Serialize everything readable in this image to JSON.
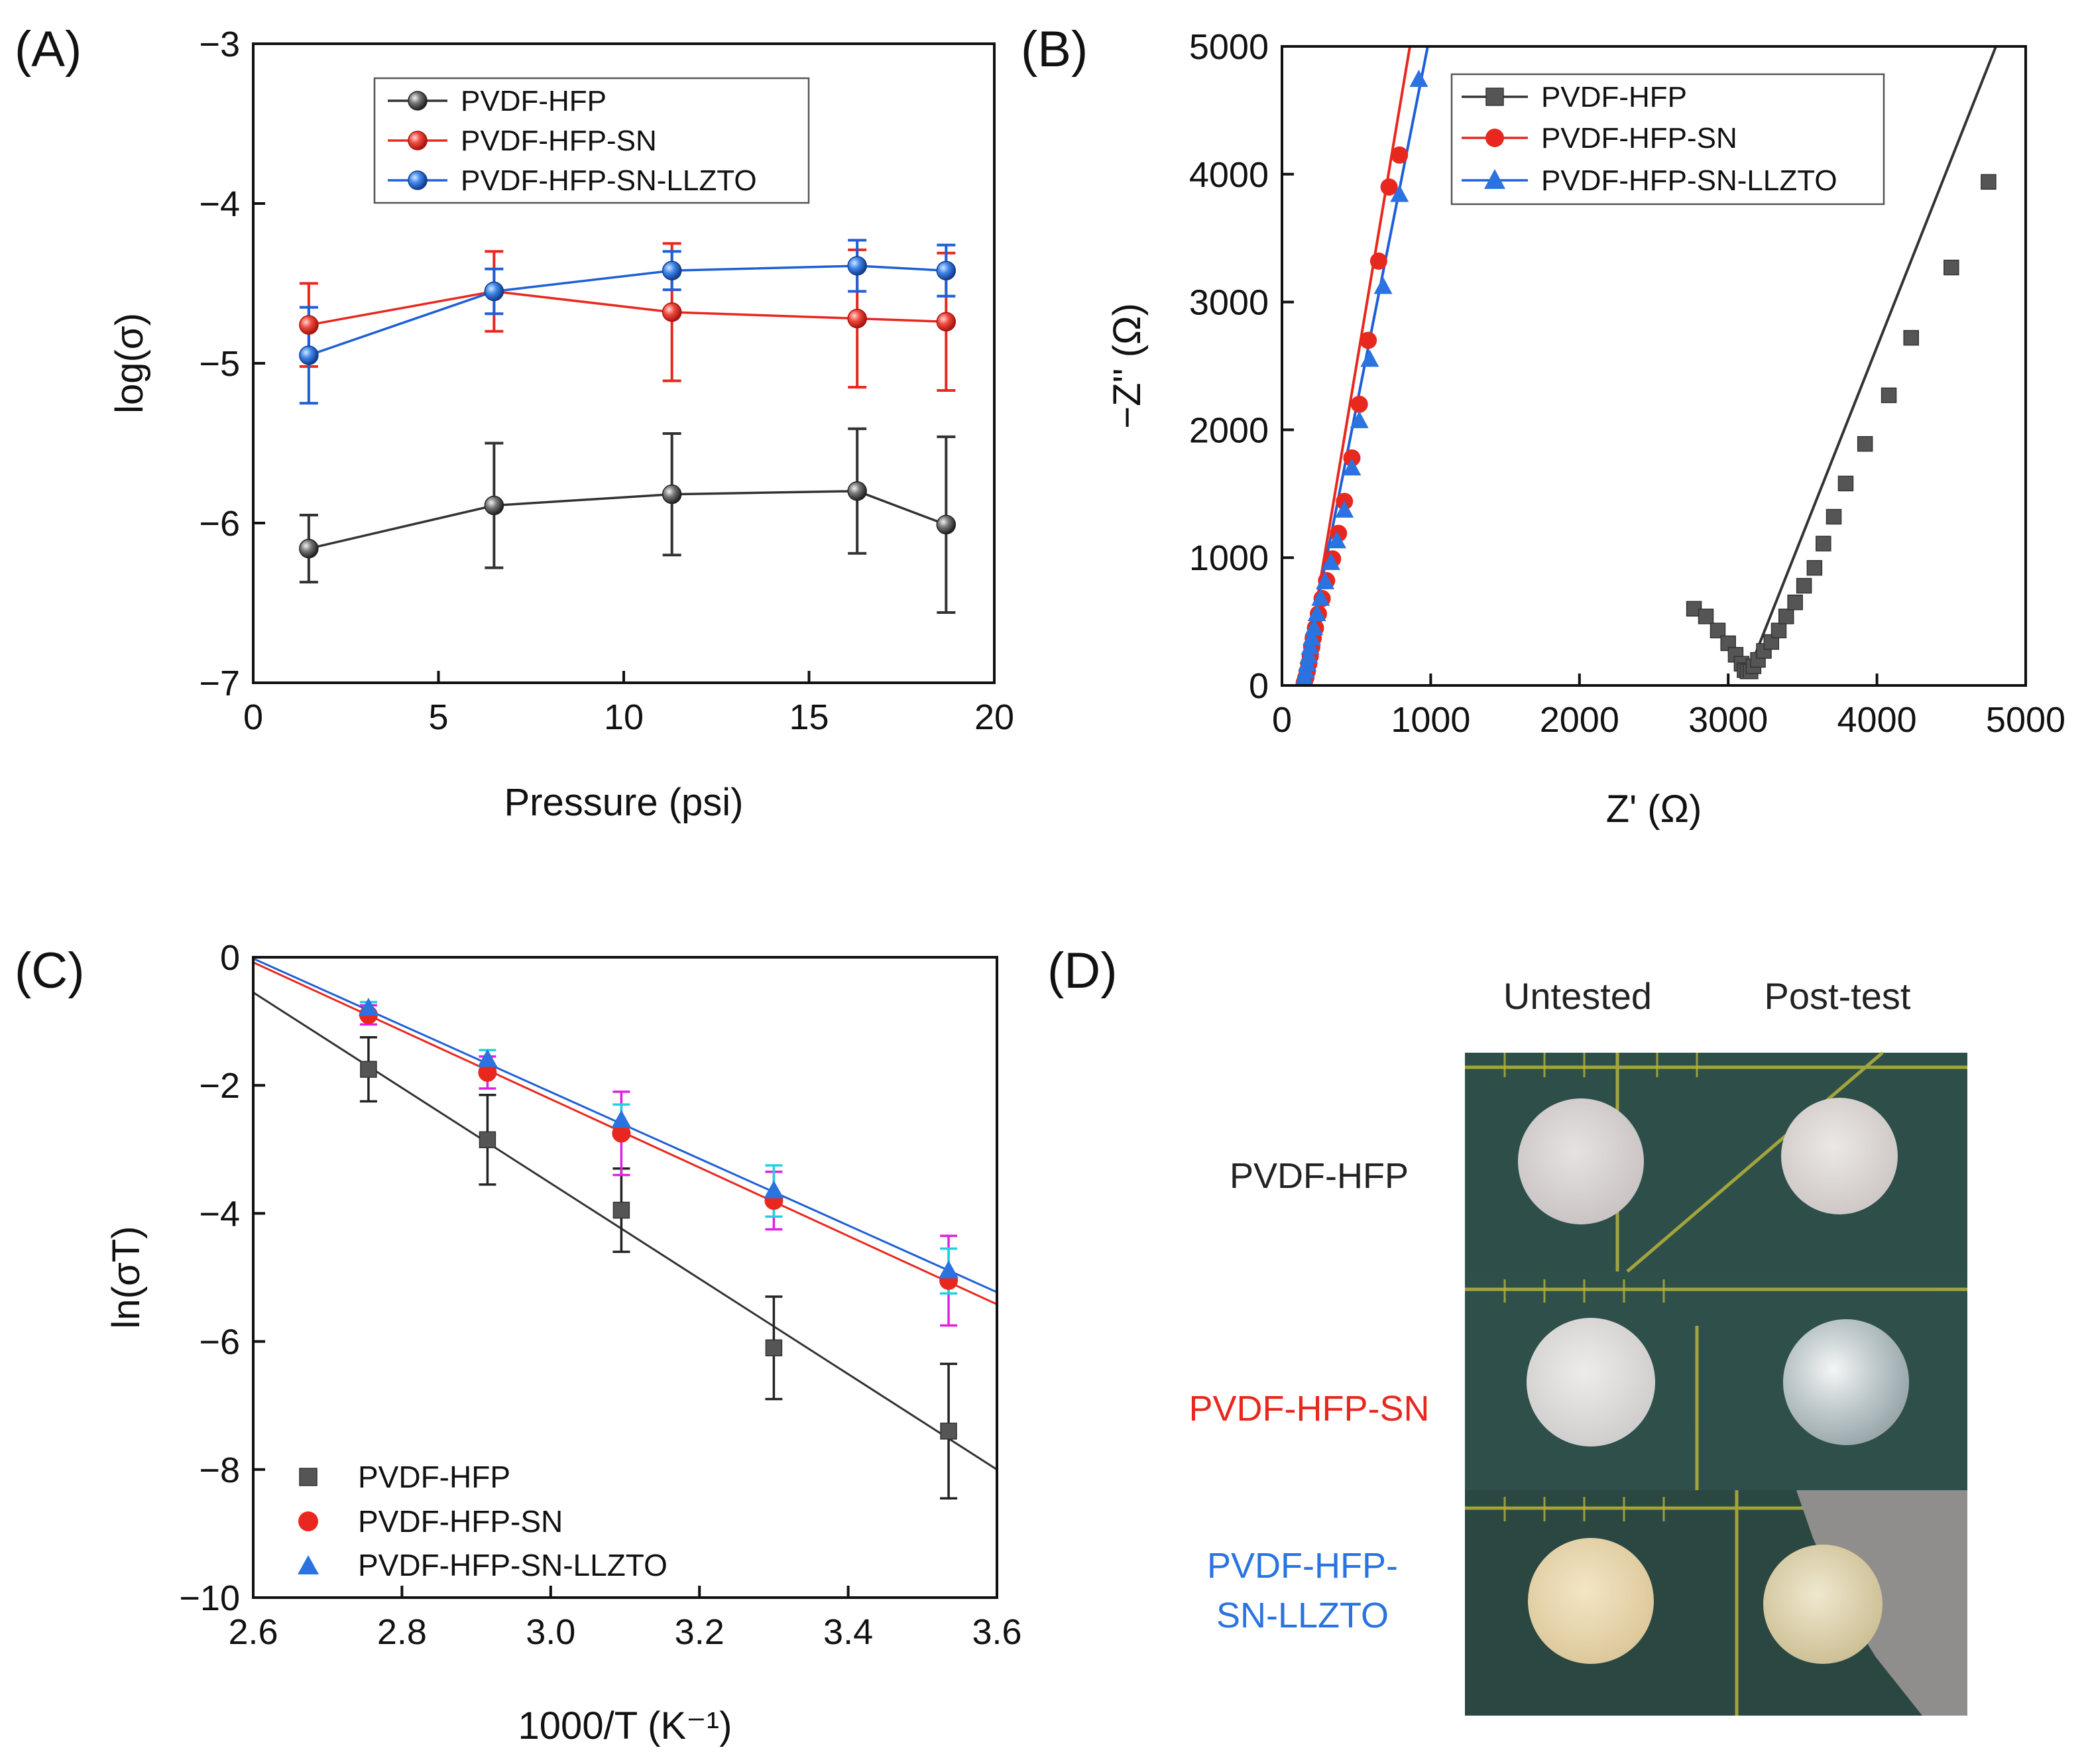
{
  "figure": {
    "panel_labels": [
      "(A)",
      "(B)",
      "(C)",
      "(D)"
    ]
  },
  "colors": {
    "PVDF-HFP": "#333333",
    "PVDF-HFP-SN": "#e8281e",
    "PVDF-HFP-SN-LLZTO": "#1e5fd6",
    "errorbar_SN_C": "#e020e0",
    "errorbar_LLZTO_C": "#20d0e0"
  },
  "chart_data": [
    {
      "panel": "A",
      "type": "line",
      "xlabel": "Pressure (psi)",
      "ylabel": "log(σ)",
      "xlim": [
        0,
        20
      ],
      "ylim": [
        -7,
        -3
      ],
      "xticks": [
        0,
        5,
        10,
        15,
        20
      ],
      "yticks": [
        -7,
        -6,
        -5,
        -4,
        -3
      ],
      "ytick_labels": [
        "−7",
        "−6",
        "−5",
        "−4",
        "−3"
      ],
      "x": [
        1.5,
        6.5,
        11.3,
        16.3,
        18.7
      ],
      "legend_position": "top-center",
      "grid": false,
      "series": [
        {
          "name": "PVDF-HFP",
          "values": [
            -6.16,
            -5.89,
            -5.82,
            -5.8,
            -6.01
          ],
          "errors": [
            0.21,
            0.39,
            0.38,
            0.39,
            0.55
          ],
          "marker": "sphere"
        },
        {
          "name": "PVDF-HFP-SN",
          "values": [
            -4.76,
            -4.55,
            -4.68,
            -4.72,
            -4.74
          ],
          "errors": [
            0.26,
            0.25,
            0.43,
            0.43,
            0.43
          ],
          "marker": "sphere"
        },
        {
          "name": "PVDF-HFP-SN-LLZTO",
          "values": [
            -4.95,
            -4.55,
            -4.42,
            -4.39,
            -4.42
          ],
          "errors": [
            0.3,
            0.14,
            0.12,
            0.16,
            0.16
          ],
          "marker": "sphere"
        }
      ]
    },
    {
      "panel": "B",
      "type": "scatter",
      "xlabel": "Z' (Ω)",
      "ylabel": "−Z'' (Ω)",
      "xlim": [
        0,
        5000
      ],
      "ylim": [
        0,
        5000
      ],
      "xticks": [
        0,
        1000,
        2000,
        3000,
        4000,
        5000
      ],
      "yticks": [
        0,
        1000,
        2000,
        3000,
        4000,
        5000
      ],
      "legend_position": "top-left",
      "grid": false,
      "series": [
        {
          "name": "PVDF-HFP",
          "marker": "square",
          "x": [
            2770,
            2850,
            2930,
            3000,
            3050,
            3090,
            3110,
            3130,
            3150,
            3170,
            3200,
            3240,
            3290,
            3340,
            3390,
            3450,
            3510,
            3580,
            3640,
            3710,
            3790,
            3920,
            4080,
            4230,
            4500,
            4750
          ],
          "y": [
            600,
            540,
            430,
            330,
            240,
            170,
            120,
            110,
            110,
            150,
            200,
            270,
            340,
            430,
            540,
            650,
            780,
            920,
            1110,
            1320,
            1580,
            1890,
            2270,
            2720,
            3270,
            3940
          ]
        },
        {
          "name": "PVDF-HFP-SN",
          "marker": "circle",
          "x": [
            150,
            160,
            170,
            180,
            190,
            200,
            210,
            225,
            245,
            270,
            300,
            340,
            380,
            420,
            470,
            520,
            580,
            650,
            720,
            790
          ],
          "y": [
            20,
            60,
            110,
            170,
            230,
            300,
            370,
            450,
            560,
            680,
            820,
            990,
            1190,
            1440,
            1780,
            2200,
            2700,
            3320,
            3900,
            4150
          ]
        },
        {
          "name": "PVDF-HFP-SN-LLZTO",
          "marker": "triangle",
          "x": [
            140,
            150,
            160,
            170,
            180,
            190,
            200,
            215,
            235,
            260,
            290,
            330,
            370,
            420,
            470,
            520,
            590,
            680,
            790,
            920
          ],
          "y": [
            20,
            60,
            110,
            170,
            230,
            300,
            370,
            450,
            560,
            680,
            810,
            960,
            1130,
            1370,
            1700,
            2070,
            2550,
            3120,
            3840,
            4740
          ]
        }
      ],
      "fit_lines": [
        {
          "name": "PVDF-HFP",
          "x": [
            3140,
            4800
          ],
          "y": [
            120,
            5000
          ]
        },
        {
          "name": "PVDF-HFP-SN",
          "x": [
            140,
            860
          ],
          "y": [
            0,
            5000
          ]
        },
        {
          "name": "PVDF-HFP-SN-LLZTO",
          "x": [
            130,
            980
          ],
          "y": [
            0,
            5000
          ]
        }
      ]
    },
    {
      "panel": "C",
      "type": "scatter",
      "xlabel": "1000/T (K⁻¹)",
      "ylabel": "ln(σT)",
      "xlim": [
        2.6,
        3.6
      ],
      "ylim": [
        -10,
        0
      ],
      "xticks": [
        2.6,
        2.8,
        3.0,
        3.2,
        3.4,
        3.6
      ],
      "xtick_labels": [
        "2.6",
        "2.8",
        "3.0",
        "3.2",
        "3.4",
        "3.6"
      ],
      "yticks": [
        -10,
        -8,
        -6,
        -4,
        -2,
        0
      ],
      "ytick_labels": [
        "−10",
        "−8",
        "−6",
        "−4",
        "−2",
        "0"
      ],
      "legend_position": "bottom-left",
      "grid": false,
      "x": [
        2.755,
        2.915,
        3.095,
        3.3,
        3.535
      ],
      "series": [
        {
          "name": "PVDF-HFP",
          "marker": "square",
          "values": [
            -1.75,
            -2.85,
            -3.95,
            -6.1,
            -7.4
          ],
          "errors": [
            0.5,
            0.7,
            0.65,
            0.8,
            1.05
          ]
        },
        {
          "name": "PVDF-HFP-SN",
          "marker": "circle",
          "values": [
            -0.9,
            -1.8,
            -2.75,
            -3.8,
            -5.05
          ],
          "errors": [
            0.15,
            0.25,
            0.65,
            0.45,
            0.7
          ]
        },
        {
          "name": "PVDF-HFP-SN-LLZTO",
          "marker": "triangle",
          "values": [
            -0.8,
            -1.6,
            -2.55,
            -3.65,
            -4.9
          ],
          "errors": [
            0.1,
            0.15,
            0.25,
            0.4,
            0.35
          ]
        }
      ],
      "fit_lines": [
        {
          "name": "PVDF-HFP",
          "x": [
            2.6,
            3.6
          ],
          "y": [
            -0.55,
            -8.0
          ]
        },
        {
          "name": "PVDF-HFP-SN",
          "x": [
            2.6,
            3.6
          ],
          "y": [
            -0.08,
            -5.42
          ]
        },
        {
          "name": "PVDF-HFP-SN-LLZTO",
          "x": [
            2.6,
            3.6
          ],
          "y": [
            -0.02,
            -5.23
          ]
        }
      ]
    }
  ],
  "panel_d": {
    "columns": [
      "Untested",
      "Post-test"
    ],
    "rows": [
      {
        "label_lines": [
          "PVDF-HFP"
        ],
        "color": "#222222"
      },
      {
        "label_lines": [
          "PVDF-HFP-SN"
        ],
        "color": "#e8281e"
      },
      {
        "label_lines": [
          "PVDF-HFP-",
          "SN-LLZTO"
        ],
        "color": "#2a73e0"
      }
    ]
  }
}
